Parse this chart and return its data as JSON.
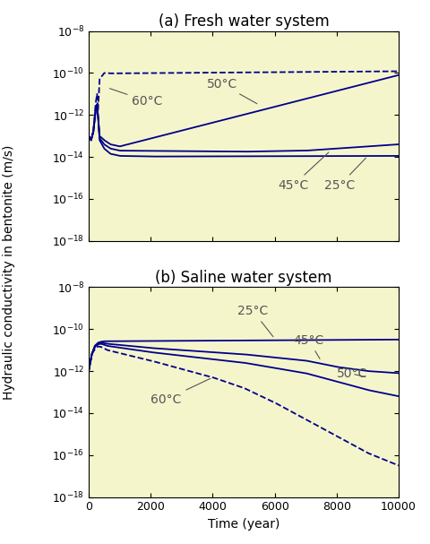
{
  "title_a": "(a) Fresh water system",
  "title_b": "(b) Saline water system",
  "xlabel": "Time (year)",
  "ylabel": "Hydraulic conductivity in bentonite (m/s)",
  "xlim": [
    0,
    10000
  ],
  "bg_color": "#f5f5cc",
  "line_color": "#00008B",
  "title_fontsize": 12,
  "label_fontsize": 10,
  "tick_fontsize": 9,
  "annot_fontsize": 10,
  "annot_color": "#555555"
}
